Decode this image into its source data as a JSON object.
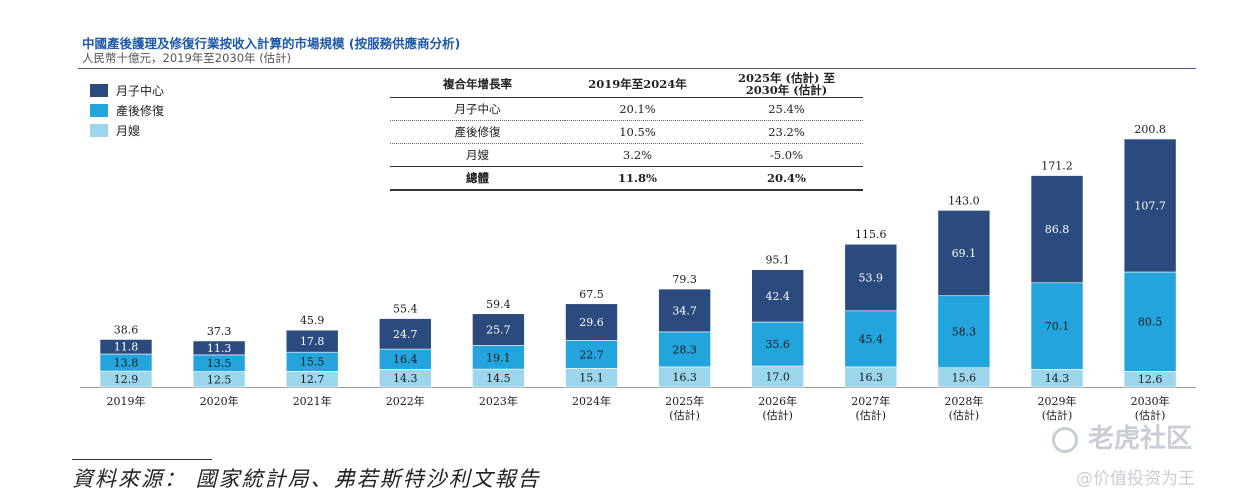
{
  "title": "中國產後護理及修復行業按收入計算的市場規模 (按服務供應商分析)",
  "subtitle": "人民幣十億元，2019年至2030年 (估計)",
  "legend": [
    {
      "label": "月子中心",
      "color": "#2b4a7d"
    },
    {
      "label": "產後修復",
      "color": "#23a4dc"
    },
    {
      "label": "月嫂",
      "color": "#9bd6ec"
    }
  ],
  "cagr_table": {
    "headers": [
      "複合年增長率",
      "2019年至2024年",
      "2025年 (估計) 至",
      "2030年 (估計)"
    ],
    "rows": [
      {
        "name": "月子中心",
        "v1": "20.1%",
        "v2": "25.4%"
      },
      {
        "name": "產後修復",
        "v1": "10.5%",
        "v2": "23.2%"
      },
      {
        "name": "月嫂",
        "v1": "3.2%",
        "v2": "-5.0%"
      }
    ],
    "total": {
      "name": "總體",
      "v1": "11.8%",
      "v2": "20.4%"
    }
  },
  "chart_data": {
    "type": "bar",
    "stacked": true,
    "categories": [
      "2019年",
      "2020年",
      "2021年",
      "2022年",
      "2023年",
      "2024年",
      "2025年",
      "2026年",
      "2027年",
      "2028年",
      "2029年",
      "2030年"
    ],
    "category_sublabels": [
      "",
      "",
      "",
      "",
      "",
      "",
      "(估計)",
      "(估計)",
      "(估計)",
      "(估計)",
      "(估計)",
      "(估計)"
    ],
    "series": [
      {
        "name": "月嫂",
        "color": "#9bd6ec",
        "values": [
          12.9,
          12.5,
          12.7,
          14.3,
          14.5,
          15.1,
          16.3,
          17.0,
          16.3,
          15.6,
          14.3,
          12.6
        ]
      },
      {
        "name": "產後修復",
        "color": "#23a4dc",
        "values": [
          13.8,
          13.5,
          15.5,
          16.4,
          19.1,
          22.7,
          28.3,
          35.6,
          45.4,
          58.3,
          70.1,
          80.5
        ]
      },
      {
        "name": "月子中心",
        "color": "#2b4a7d",
        "values": [
          11.8,
          11.3,
          17.8,
          24.7,
          25.7,
          29.6,
          34.7,
          42.4,
          53.9,
          69.1,
          86.8,
          107.7
        ]
      }
    ],
    "totals": [
      38.6,
      37.3,
      45.9,
      55.4,
      59.4,
      67.5,
      79.3,
      95.1,
      115.6,
      143.0,
      171.2,
      200.8
    ],
    "ylim": [
      0,
      200.8
    ],
    "xlabel": "",
    "ylabel": ""
  },
  "source": "資料來源： 國家統計局、弗若斯特沙利文報告",
  "watermark": {
    "top": "老虎社区",
    "bottom": "@价值投资为王"
  }
}
